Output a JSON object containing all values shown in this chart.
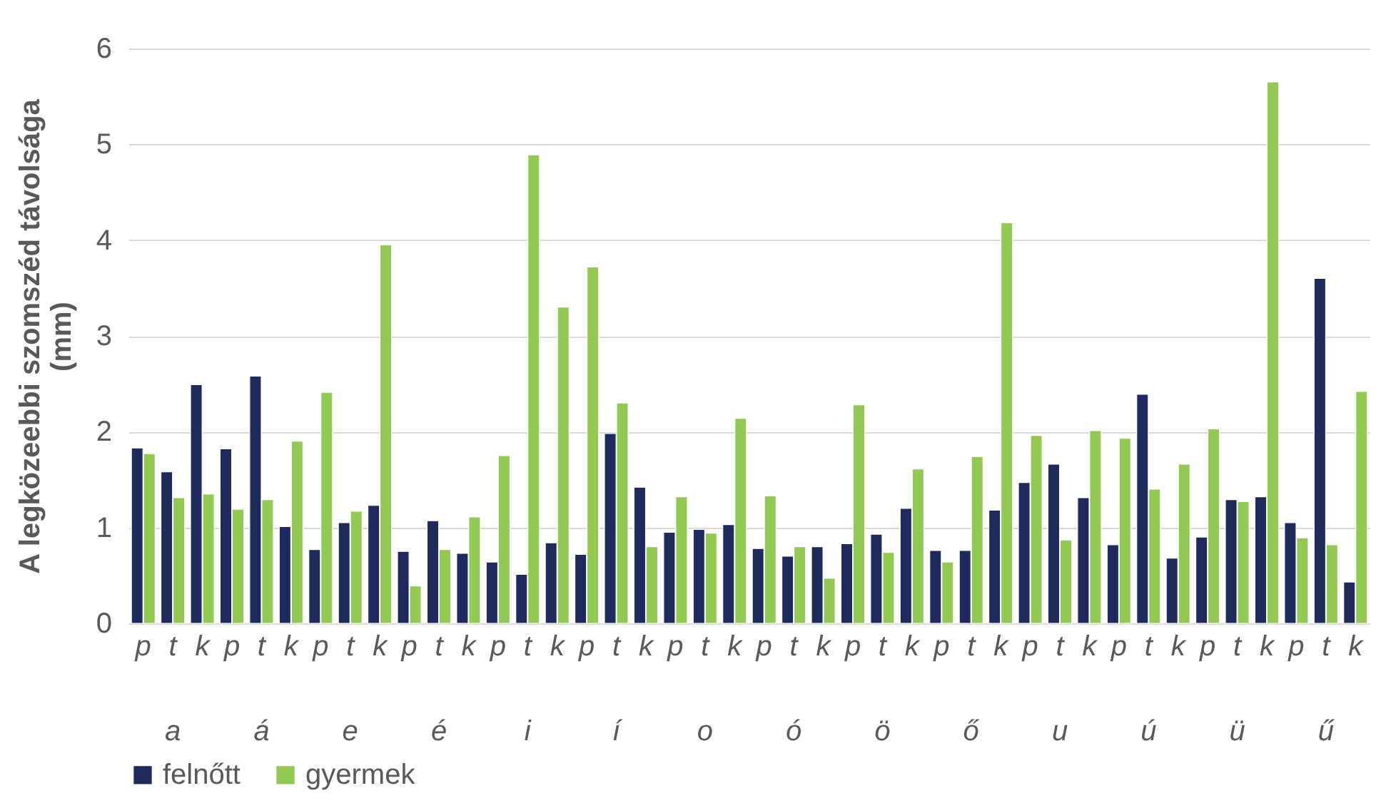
{
  "chart_data": {
    "type": "bar",
    "ylabel": "A legközeebbi szomszéd távolsága\n(mm)",
    "categories": [
      "p",
      "t",
      "k",
      "p",
      "t",
      "k",
      "p",
      "t",
      "k",
      "p",
      "t",
      "k",
      "p",
      "t",
      "k",
      "p",
      "t",
      "k",
      "p",
      "t",
      "k",
      "p",
      "t",
      "k",
      "p",
      "t",
      "k",
      "p",
      "t",
      "k",
      "p",
      "t",
      "k",
      "p",
      "t",
      "k",
      "p",
      "t",
      "k",
      "p",
      "t",
      "k"
    ],
    "annotations": [
      "a",
      "á",
      "e",
      "é",
      "i",
      "í",
      "o",
      "ó",
      "ö",
      "ő",
      "u",
      "ú",
      "ü",
      "ű"
    ],
    "series": [
      {
        "name": "felnőtt",
        "color": "#1f2a5c",
        "values": [
          1.83,
          1.58,
          2.49,
          1.82,
          2.58,
          1.01,
          0.77,
          1.05,
          1.23,
          0.75,
          1.07,
          0.73,
          0.64,
          0.51,
          0.84,
          0.72,
          1.98,
          1.42,
          0.95,
          0.98,
          1.03,
          0.78,
          0.7,
          0.8,
          0.83,
          0.93,
          1.2,
          0.76,
          0.76,
          1.18,
          1.47,
          1.66,
          1.31,
          0.82,
          2.39,
          0.68,
          0.9,
          1.29,
          1.32,
          1.05,
          3.6,
          0.43
        ]
      },
      {
        "name": "gyermek",
        "color": "#92c952",
        "values": [
          1.77,
          1.31,
          1.35,
          1.19,
          1.29,
          1.9,
          2.41,
          1.17,
          3.95,
          0.39,
          0.77,
          1.11,
          1.75,
          4.89,
          3.3,
          3.72,
          2.3,
          0.8,
          1.32,
          0.94,
          2.14,
          1.33,
          0.8,
          0.47,
          2.28,
          0.74,
          1.61,
          0.64,
          1.74,
          4.18,
          1.96,
          0.87,
          2.01,
          1.93,
          1.4,
          1.66,
          2.03,
          1.27,
          5.65,
          0.89,
          0.82,
          2.42
        ]
      }
    ],
    "ylim": [
      0,
      6
    ],
    "yticks": [
      0,
      1,
      2,
      3,
      4,
      5,
      6
    ],
    "grid": "y",
    "legend": "bottom"
  }
}
